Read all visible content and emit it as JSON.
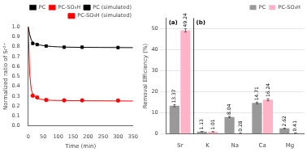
{
  "chart_data": [
    {
      "type": "line",
      "xlabel": "Time (min)",
      "ylabel": "Normalized ratio of Sr²⁺",
      "xlim": [
        0,
        350
      ],
      "ylim": [
        0.0,
        1.0
      ],
      "xticks": [
        0,
        50,
        100,
        150,
        200,
        250,
        300,
        350
      ],
      "yticks": [
        {
          "value": 0.0,
          "label": "0.0"
        },
        0.1,
        0.2,
        0.3,
        0.4,
        0.5,
        0.6,
        0.7,
        0.8,
        0.9,
        {
          "value": 1.0,
          "label": "1.0"
        }
      ],
      "grid": false,
      "legend": "center right",
      "series": [
        {
          "name": "PC",
          "type": "scatter",
          "color": "black",
          "marker": "square",
          "x": [
            15,
            30,
            60,
            120,
            180,
            300
          ],
          "values": [
            0.832,
            0.82,
            0.805,
            0.793,
            0.793,
            0.79
          ],
          "errors": [
            0.012,
            0.012,
            0.012,
            0.012,
            0.012,
            0.012
          ]
        },
        {
          "name": "PC (simulated)",
          "type": "line",
          "color": "black",
          "line_style": "solid",
          "x": [
            0,
            5,
            10,
            15,
            20,
            30,
            40,
            50,
            60,
            80,
            100,
            120,
            150,
            180,
            240,
            300,
            350
          ],
          "values": [
            1.0,
            0.92,
            0.87,
            0.84,
            0.83,
            0.82,
            0.815,
            0.81,
            0.806,
            0.8,
            0.797,
            0.795,
            0.793,
            0.792,
            0.791,
            0.79,
            0.789
          ]
        },
        {
          "name": "PC-SO₃H",
          "type": "scatter",
          "color": "red",
          "marker": "circle",
          "x": [
            15,
            30,
            60,
            120,
            180,
            300
          ],
          "values": [
            0.305,
            0.288,
            0.262,
            0.258,
            0.258,
            0.256
          ],
          "errors": [
            0.01,
            0.01,
            0.01,
            0.01,
            0.01,
            0.01
          ]
        },
        {
          "name": "PC-SO₃H (simulated)",
          "type": "line",
          "color": "red",
          "line_style": "solid",
          "x": [
            0,
            5,
            10,
            15,
            20,
            25,
            30,
            40,
            50,
            60,
            80,
            100,
            120,
            150,
            180,
            240,
            300,
            350
          ],
          "values": [
            1.0,
            0.52,
            0.37,
            0.32,
            0.3,
            0.285,
            0.278,
            0.27,
            0.265,
            0.262,
            0.258,
            0.257,
            0.256,
            0.255,
            0.254,
            0.253,
            0.252,
            0.251
          ]
        }
      ]
    },
    {
      "type": "bar",
      "ylabel": "Removal Efficiency (%)",
      "categories": [
        "Sr",
        "K",
        "Na",
        "Ca",
        "Mg"
      ],
      "ylim": [
        0,
        55
      ],
      "yticks": [
        0,
        10,
        20,
        30,
        40,
        50
      ],
      "grid": true,
      "legend": "upper right",
      "data_labels": true,
      "annotations": [
        "(a)",
        "(b)"
      ],
      "series": [
        {
          "name": "PC",
          "color": "#999999",
          "values": [
            13.37,
            1.13,
            8.04,
            14.71,
            2.62
          ],
          "errors": [
            0.5,
            0.05,
            0.3,
            0.4,
            0.1
          ]
        },
        {
          "name": "PC-SO₃H",
          "color": "#ffb3c6",
          "values": [
            49.24,
            1.01,
            0.28,
            16.24,
            0.41
          ],
          "errors": [
            0.8,
            0.05,
            0.05,
            0.5,
            0.05
          ]
        }
      ]
    }
  ]
}
